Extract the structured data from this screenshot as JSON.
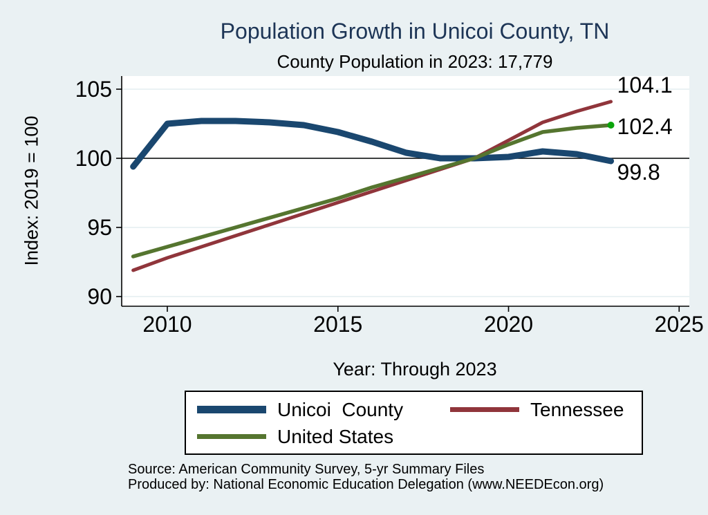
{
  "chart_data": {
    "type": "line",
    "title": "Population Growth in Unicoi County, TN",
    "subtitle": "County Population in 2023: 17,779",
    "xlabel": "Year: Through 2023",
    "ylabel": "Index: 2019 = 100",
    "x": [
      2009,
      2010,
      2011,
      2012,
      2013,
      2014,
      2015,
      2016,
      2017,
      2018,
      2019,
      2020,
      2021,
      2022,
      2023
    ],
    "x_ticks": [
      2010,
      2015,
      2020,
      2025
    ],
    "y_ticks": [
      90,
      95,
      100,
      105
    ],
    "xlim": [
      2008.7,
      2025.3
    ],
    "ylim": [
      89.3,
      106
    ],
    "grid": "horizontal",
    "legend_position": "bottom",
    "reference_line": 100,
    "series": [
      {
        "name": "Unicoi  County",
        "color": "#1a476f",
        "width": 9,
        "end_label": "99.8",
        "values": [
          99.4,
          102.5,
          102.7,
          102.7,
          102.6,
          102.4,
          101.9,
          101.2,
          100.4,
          100.0,
          100.0,
          100.1,
          100.5,
          100.3,
          99.8
        ]
      },
      {
        "name": "Tennessee",
        "color": "#90353b",
        "width": 5,
        "end_label": "104.1",
        "values": [
          91.9,
          92.8,
          93.6,
          94.4,
          95.2,
          96.0,
          96.8,
          97.6,
          98.4,
          99.2,
          100.0,
          101.3,
          102.6,
          103.4,
          104.1
        ]
      },
      {
        "name": "United States",
        "color": "#55752f",
        "width": 5.5,
        "end_label": "102.4",
        "end_marker": true,
        "values": [
          92.9,
          93.6,
          94.3,
          95.0,
          95.7,
          96.4,
          97.1,
          97.9,
          98.6,
          99.3,
          100.0,
          101.0,
          101.9,
          102.2,
          102.4
        ]
      }
    ],
    "colors": {
      "background": "#eaf1f3",
      "plot_background": "#ffffff",
      "title_text": "#1d3556",
      "grid_line": "#e4edf0",
      "axis_line": "#000000",
      "reference_line": "#000000",
      "tick_text": "#000000",
      "us_end_dot": "#0aa40a"
    },
    "source": [
      "Source: American Community Survey, 5-yr Summary Files",
      "Produced by: National Economic Education Delegation (www.NEEDEcon.org)"
    ]
  }
}
